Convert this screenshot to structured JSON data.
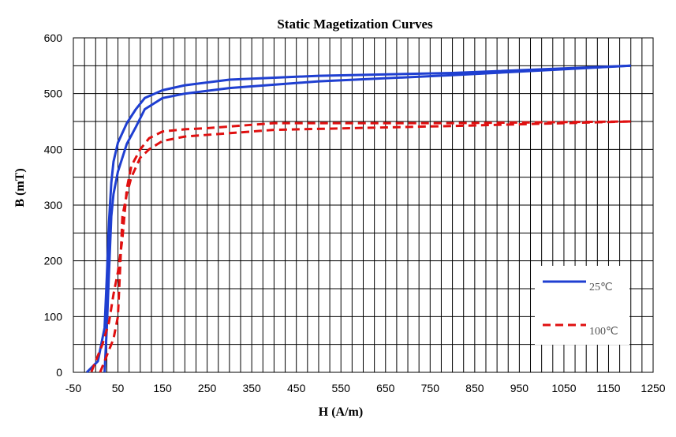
{
  "chart_data": {
    "type": "line",
    "title": "Static Magetization Curves",
    "xlabel": "H (A/m)",
    "ylabel": "B (mT)",
    "xlim": [
      -50,
      1250
    ],
    "ylim": [
      0,
      600
    ],
    "x_ticks": [
      "-50",
      "50",
      "150",
      "250",
      "350",
      "450",
      "550",
      "650",
      "750",
      "850",
      "950",
      "1050",
      "1150",
      "1250"
    ],
    "x_tick_values": [
      -50,
      50,
      150,
      250,
      350,
      450,
      550,
      650,
      750,
      850,
      950,
      1050,
      1150,
      1250
    ],
    "y_ticks": [
      "0",
      "100",
      "200",
      "300",
      "400",
      "500",
      "600"
    ],
    "y_tick_values": [
      0,
      100,
      200,
      300,
      400,
      500,
      600
    ],
    "grid": true,
    "legend_position": "bottom-right",
    "series": [
      {
        "name": "25℃",
        "color": "#1f3fd1",
        "dash": "solid",
        "descending": [
          [
            1200,
            550
          ],
          [
            800,
            537
          ],
          [
            500,
            532
          ],
          [
            300,
            525
          ],
          [
            200,
            515
          ],
          [
            150,
            506
          ],
          [
            110,
            492
          ],
          [
            90,
            472
          ],
          [
            70,
            447
          ],
          [
            50,
            412
          ],
          [
            40,
            378
          ],
          [
            35,
            340
          ],
          [
            30,
            270
          ],
          [
            25,
            170
          ],
          [
            20,
            80
          ],
          [
            5,
            20
          ],
          [
            -20,
            0
          ]
        ],
        "ascending": [
          [
            20,
            0
          ],
          [
            25,
            80
          ],
          [
            30,
            180
          ],
          [
            35,
            280
          ],
          [
            40,
            320
          ],
          [
            50,
            360
          ],
          [
            70,
            410
          ],
          [
            90,
            440
          ],
          [
            110,
            472
          ],
          [
            150,
            492
          ],
          [
            200,
            500
          ],
          [
            300,
            510
          ],
          [
            500,
            522
          ],
          [
            800,
            533
          ],
          [
            1200,
            550
          ]
        ]
      },
      {
        "name": "100℃",
        "color": "#e01010",
        "dash": "dashed",
        "descending": [
          [
            1200,
            450
          ],
          [
            800,
            447
          ],
          [
            400,
            447
          ],
          [
            250,
            438
          ],
          [
            200,
            436
          ],
          [
            150,
            432
          ],
          [
            120,
            420
          ],
          [
            100,
            400
          ],
          [
            80,
            370
          ],
          [
            70,
            330
          ],
          [
            60,
            240
          ],
          [
            50,
            180
          ],
          [
            40,
            140
          ],
          [
            30,
            90
          ],
          [
            15,
            50
          ],
          [
            -10,
            0
          ]
        ],
        "ascending": [
          [
            10,
            0
          ],
          [
            20,
            20
          ],
          [
            30,
            40
          ],
          [
            40,
            60
          ],
          [
            50,
            100
          ],
          [
            55,
            190
          ],
          [
            60,
            280
          ],
          [
            70,
            320
          ],
          [
            80,
            350
          ],
          [
            100,
            385
          ],
          [
            120,
            400
          ],
          [
            150,
            415
          ],
          [
            200,
            423
          ],
          [
            400,
            435
          ],
          [
            800,
            442
          ],
          [
            1200,
            450
          ]
        ]
      }
    ]
  }
}
